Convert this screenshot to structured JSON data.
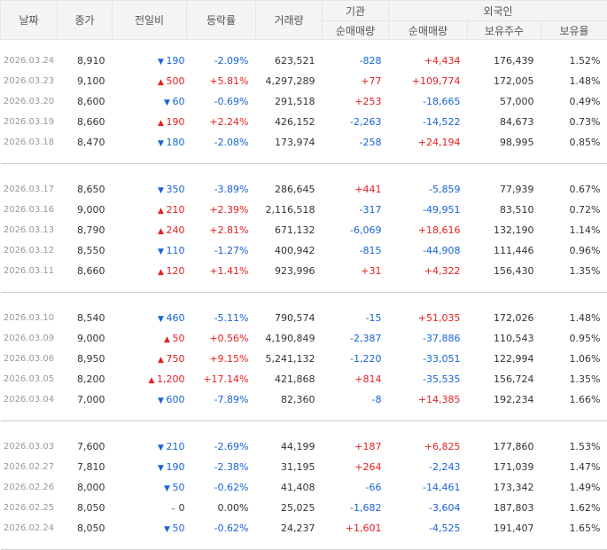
{
  "headers": {
    "date": "날짜",
    "close": "종가",
    "change": "전일비",
    "rate": "등락률",
    "volume": "거래량",
    "inst": "기관",
    "foreign": "외국인",
    "inst_net": "순매매량",
    "foreign_net": "순매매량",
    "holding": "보유주수",
    "ratio": "보유율"
  },
  "colors": {
    "up": "#e61e1e",
    "down": "#1763d8"
  },
  "groups": [
    [
      {
        "date": "2026.03.24",
        "close": "8,910",
        "dir": "down",
        "arrow": "▼",
        "change": "190",
        "rate": "-2.09%",
        "volume": "623,521",
        "inst": "-828",
        "foreign": "+4,434",
        "holding": "176,439",
        "ratio": "1.52%"
      },
      {
        "date": "2026.03.23",
        "close": "9,100",
        "dir": "up",
        "arrow": "▲",
        "change": "500",
        "rate": "+5.81%",
        "volume": "4,297,289",
        "inst": "+77",
        "foreign": "+109,774",
        "holding": "172,005",
        "ratio": "1.48%"
      },
      {
        "date": "2026.03.20",
        "close": "8,600",
        "dir": "down",
        "arrow": "▼",
        "change": "60",
        "rate": "-0.69%",
        "volume": "291,518",
        "inst": "+253",
        "foreign": "-18,665",
        "holding": "57,000",
        "ratio": "0.49%"
      },
      {
        "date": "2026.03.19",
        "close": "8,660",
        "dir": "up",
        "arrow": "▲",
        "change": "190",
        "rate": "+2.24%",
        "volume": "426,152",
        "inst": "-2,263",
        "foreign": "-14,522",
        "holding": "84,673",
        "ratio": "0.73%"
      },
      {
        "date": "2026.03.18",
        "close": "8,470",
        "dir": "down",
        "arrow": "▼",
        "change": "180",
        "rate": "-2.08%",
        "volume": "173,974",
        "inst": "-258",
        "foreign": "+24,194",
        "holding": "98,995",
        "ratio": "0.85%"
      }
    ],
    [
      {
        "date": "2026.03.17",
        "close": "8,650",
        "dir": "down",
        "arrow": "▼",
        "change": "350",
        "rate": "-3.89%",
        "volume": "286,645",
        "inst": "+441",
        "foreign": "-5,859",
        "holding": "77,939",
        "ratio": "0.67%"
      },
      {
        "date": "2026.03.16",
        "close": "9,000",
        "dir": "up",
        "arrow": "▲",
        "change": "210",
        "rate": "+2.39%",
        "volume": "2,116,518",
        "inst": "-317",
        "foreign": "-49,951",
        "holding": "83,510",
        "ratio": "0.72%"
      },
      {
        "date": "2026.03.13",
        "close": "8,790",
        "dir": "up",
        "arrow": "▲",
        "change": "240",
        "rate": "+2.81%",
        "volume": "671,132",
        "inst": "-6,069",
        "foreign": "+18,616",
        "holding": "132,190",
        "ratio": "1.14%"
      },
      {
        "date": "2026.03.12",
        "close": "8,550",
        "dir": "down",
        "arrow": "▼",
        "change": "110",
        "rate": "-1.27%",
        "volume": "400,942",
        "inst": "-815",
        "foreign": "-44,908",
        "holding": "111,446",
        "ratio": "0.96%"
      },
      {
        "date": "2026.03.11",
        "close": "8,660",
        "dir": "up",
        "arrow": "▲",
        "change": "120",
        "rate": "+1.41%",
        "volume": "923,996",
        "inst": "+31",
        "foreign": "+4,322",
        "holding": "156,430",
        "ratio": "1.35%"
      }
    ],
    [
      {
        "date": "2026.03.10",
        "close": "8,540",
        "dir": "down",
        "arrow": "▼",
        "change": "460",
        "rate": "-5.11%",
        "volume": "790,574",
        "inst": "-15",
        "foreign": "+51,035",
        "holding": "172,026",
        "ratio": "1.48%"
      },
      {
        "date": "2026.03.09",
        "close": "9,000",
        "dir": "up",
        "arrow": "▲",
        "change": "50",
        "rate": "+0.56%",
        "volume": "4,190,849",
        "inst": "-2,387",
        "foreign": "-37,886",
        "holding": "110,543",
        "ratio": "0.95%"
      },
      {
        "date": "2026.03.06",
        "close": "8,950",
        "dir": "up",
        "arrow": "▲",
        "change": "750",
        "rate": "+9.15%",
        "volume": "5,241,132",
        "inst": "-1,220",
        "foreign": "-33,051",
        "holding": "122,994",
        "ratio": "1.06%"
      },
      {
        "date": "2026.03.05",
        "close": "8,200",
        "dir": "up",
        "arrow": "▲",
        "change": "1,200",
        "rate": "+17.14%",
        "volume": "421,868",
        "inst": "+814",
        "foreign": "-35,535",
        "holding": "156,724",
        "ratio": "1.35%"
      },
      {
        "date": "2026.03.04",
        "close": "7,000",
        "dir": "down",
        "arrow": "▼",
        "change": "600",
        "rate": "-7.89%",
        "volume": "82,360",
        "inst": "-8",
        "foreign": "+14,385",
        "holding": "192,234",
        "ratio": "1.66%"
      }
    ],
    [
      {
        "date": "2026.03.03",
        "close": "7,600",
        "dir": "down",
        "arrow": "▼",
        "change": "210",
        "rate": "-2.69%",
        "volume": "44,199",
        "inst": "+187",
        "foreign": "+6,825",
        "holding": "177,860",
        "ratio": "1.53%"
      },
      {
        "date": "2026.02.27",
        "close": "7,810",
        "dir": "down",
        "arrow": "▼",
        "change": "190",
        "rate": "-2.38%",
        "volume": "31,195",
        "inst": "+264",
        "foreign": "-2,243",
        "holding": "171,039",
        "ratio": "1.47%"
      },
      {
        "date": "2026.02.26",
        "close": "8,000",
        "dir": "down",
        "arrow": "▼",
        "change": "50",
        "rate": "-0.62%",
        "volume": "41,408",
        "inst": "-66",
        "foreign": "-14,461",
        "holding": "173,342",
        "ratio": "1.49%"
      },
      {
        "date": "2026.02.25",
        "close": "8,050",
        "dir": "flat",
        "arrow": "–",
        "change": "0",
        "rate": "0.00%",
        "volume": "25,025",
        "inst": "-1,682",
        "foreign": "-3,604",
        "holding": "187,803",
        "ratio": "1.62%"
      },
      {
        "date": "2026.02.24",
        "close": "8,050",
        "dir": "down",
        "arrow": "▼",
        "change": "50",
        "rate": "-0.62%",
        "volume": "24,237",
        "inst": "+1,601",
        "foreign": "-4,525",
        "holding": "191,407",
        "ratio": "1.65%"
      }
    ]
  ]
}
